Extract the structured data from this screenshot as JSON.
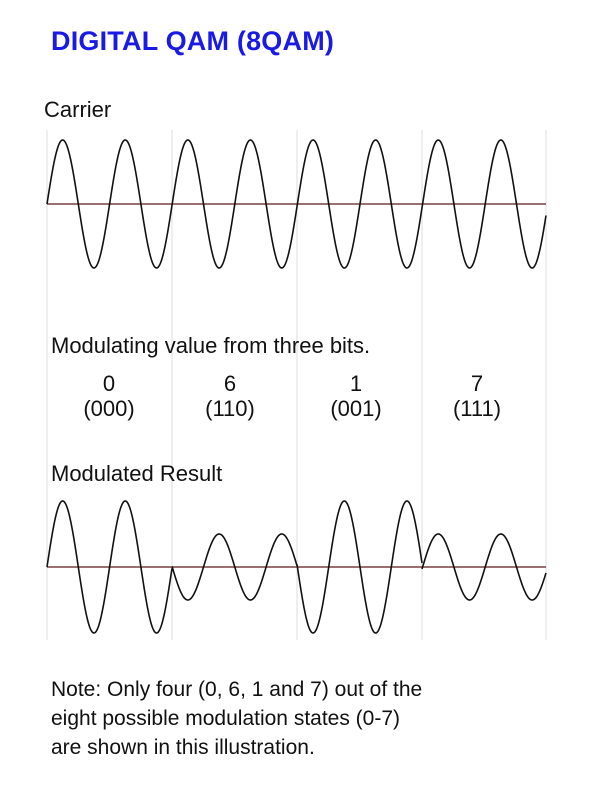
{
  "title": "DIGITAL QAM (8QAM)",
  "carrier_label": "Carrier",
  "modulating_label": "Modulating value from three bits.",
  "states": [
    {
      "value": "0",
      "bits": "(000)",
      "amplitude": 1.0,
      "phase_deg": 0
    },
    {
      "value": "6",
      "bits": "(110)",
      "amplitude": 0.5,
      "phase_deg": 180
    },
    {
      "value": "1",
      "bits": "(001)",
      "amplitude": 1.0,
      "phase_deg": 180
    },
    {
      "value": "7",
      "bits": "(111)",
      "amplitude": 0.5,
      "phase_deg": 0
    }
  ],
  "result_label": "Modulated Result",
  "note_lines": [
    "Note: Only four (0, 6, 1 and 7) out of the",
    "eight possible modulation states (0-7)",
    "are shown in this illustration."
  ],
  "colors": {
    "title": "#1a1ae6",
    "wave": "#111111",
    "axis": "#5a1a1a",
    "divider": "#dddddd"
  }
}
